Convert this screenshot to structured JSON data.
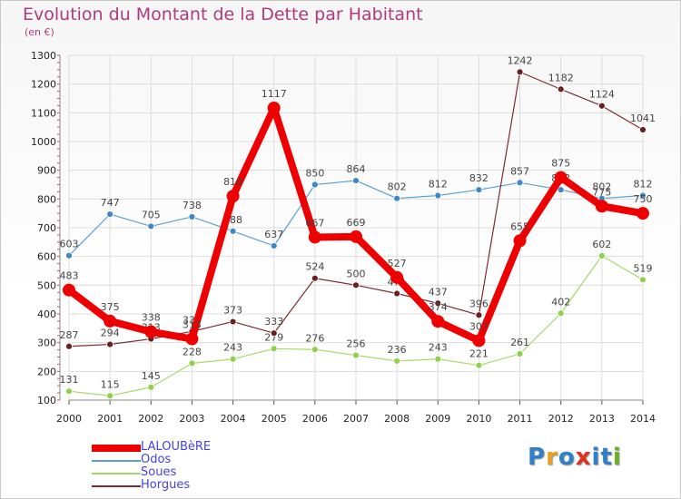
{
  "title": "Evolution du Montant de la Dette par Habitant",
  "unit_label": "(en €)",
  "colors": {
    "title": "#b33a7a",
    "tick": "#222222",
    "grid": "#dddddd",
    "label": "#444444"
  },
  "logo": {
    "letters": [
      "P",
      "r",
      "o",
      "x",
      "i",
      "t",
      "i"
    ],
    "colors": [
      "#2f80c8",
      "#e8a020",
      "#2f80c8",
      "#e03020",
      "#2f80c8",
      "#2f80c8",
      "#6ab022"
    ]
  },
  "chart_data": {
    "type": "line",
    "title": "Evolution du Montant de la Dette par Habitant",
    "ylabel": "(en €)",
    "x": [
      "2000",
      "2001",
      "2002",
      "2003",
      "2004",
      "2005",
      "2006",
      "2007",
      "2008",
      "2009",
      "2010",
      "2011",
      "2012",
      "2013",
      "2014"
    ],
    "ylim": [
      100,
      1300
    ],
    "yticks": [
      100,
      200,
      300,
      400,
      500,
      600,
      700,
      800,
      900,
      1000,
      1100,
      1200,
      1300
    ],
    "grid": true,
    "legend": "bottom-left",
    "series": [
      {
        "name": "Odos",
        "color": "#5a9fd4",
        "marker": "#3d88c8",
        "width": 1.2,
        "radius": 3.5,
        "values": [
          603,
          747,
          705,
          738,
          688,
          637,
          850,
          864,
          802,
          812,
          832,
          857,
          832,
          802,
          812
        ]
      },
      {
        "name": "Soues",
        "color": "#a6d96a",
        "marker": "#8fd04c",
        "width": 1.2,
        "radius": 3.5,
        "values": [
          131,
          115,
          145,
          228,
          243,
          279,
          276,
          256,
          236,
          243,
          221,
          261,
          402,
          602,
          519
        ]
      },
      {
        "name": "Horgues",
        "color": "#7b2c2c",
        "marker": "#6a1f1f",
        "width": 1.2,
        "radius": 3.5,
        "values": [
          287,
          294,
          313,
          339,
          373,
          333,
          524,
          500,
          471,
          437,
          396,
          1242,
          1182,
          1124,
          1041
        ]
      },
      {
        "name": "LALOUBèRE",
        "color": "#ee0000",
        "marker": "#ee0000",
        "width": 8,
        "radius": 7,
        "values": [
          483,
          375,
          338,
          313,
          810,
          1117,
          667,
          669,
          527,
          374,
          307,
          655,
          875,
          775,
          750
        ]
      }
    ]
  },
  "legend": [
    {
      "name": "LALOUBèRE",
      "color": "#ee0000",
      "text_color": "#4444dd",
      "thickness": 8
    },
    {
      "name": "Odos",
      "color": "#5a9fd4",
      "text_color": "#4444dd",
      "thickness": 2
    },
    {
      "name": "Soues",
      "color": "#a6d96a",
      "text_color": "#4444dd",
      "thickness": 2
    },
    {
      "name": "Horgues",
      "color": "#7b2c2c",
      "text_color": "#4444dd",
      "thickness": 2
    }
  ]
}
